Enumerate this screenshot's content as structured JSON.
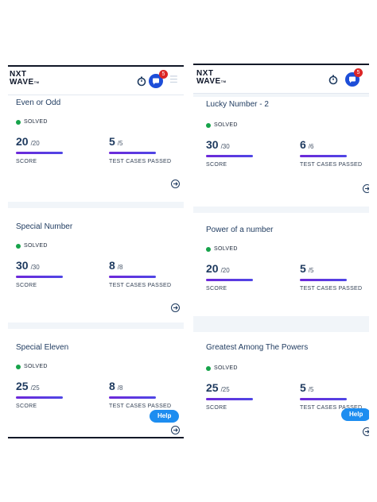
{
  "logo": {
    "line1": "NXT",
    "line2": "WAVE",
    "tm": "TM"
  },
  "header": {
    "notification_count": "5"
  },
  "help_label": "Help",
  "labels": {
    "solved": "SOLVED",
    "score": "SCORE",
    "tests": "TEST CASES PASSED"
  },
  "left_cards": [
    {
      "title": "Even or Odd",
      "score": "20",
      "score_total": "/20",
      "tests": "5",
      "tests_total": "/5"
    },
    {
      "title": "Special Number",
      "score": "30",
      "score_total": "/30",
      "tests": "8",
      "tests_total": "/8"
    },
    {
      "title": "Special Eleven",
      "score": "25",
      "score_total": "/25",
      "tests": "8",
      "tests_total": "/8"
    }
  ],
  "right_cards": [
    {
      "title": "Lucky Number - 2",
      "score": "30",
      "score_total": "/30",
      "tests": "6",
      "tests_total": "/6"
    },
    {
      "title": "Power of a number",
      "score": "20",
      "score_total": "/20",
      "tests": "5",
      "tests_total": "/5"
    },
    {
      "title": "Greatest Among The Powers",
      "score": "25",
      "score_total": "/25",
      "tests": "5",
      "tests_total": "/5"
    }
  ]
}
